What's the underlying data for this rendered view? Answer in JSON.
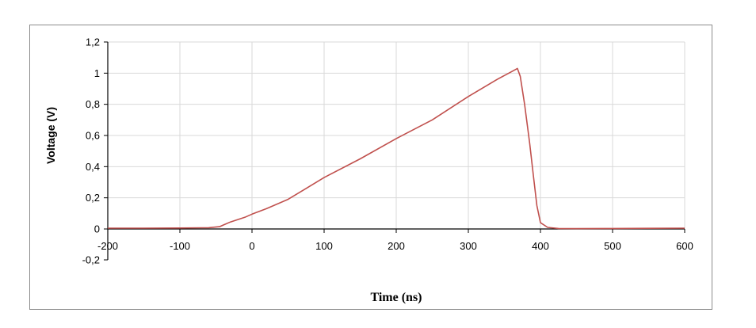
{
  "chart_data": {
    "type": "line",
    "title": "",
    "xlabel": "Time (ns)",
    "ylabel": "Voltage (V)",
    "xlim": [
      -200,
      600
    ],
    "ylim": [
      -0.2,
      1.2
    ],
    "x_ticks": [
      -200,
      -100,
      0,
      100,
      200,
      300,
      400,
      500,
      600
    ],
    "x_tick_labels": [
      "-200",
      "-100",
      "0",
      "100",
      "200",
      "300",
      "400",
      "500",
      "600"
    ],
    "y_ticks": [
      -0.2,
      0,
      0.2,
      0.4,
      0.6,
      0.8,
      1,
      1.2
    ],
    "y_tick_labels": [
      "-0,2",
      "0",
      "0,2",
      "0,4",
      "0,6",
      "0,8",
      "1",
      "1,2"
    ],
    "grid": true,
    "legend": "none",
    "series": [
      {
        "color": "#c0504d",
        "points": [
          [
            -200,
            0.005
          ],
          [
            -150,
            0.005
          ],
          [
            -100,
            0.006
          ],
          [
            -60,
            0.008
          ],
          [
            -45,
            0.015
          ],
          [
            -40,
            0.025
          ],
          [
            -30,
            0.045
          ],
          [
            -20,
            0.06
          ],
          [
            -10,
            0.075
          ],
          [
            0,
            0.095
          ],
          [
            20,
            0.13
          ],
          [
            50,
            0.19
          ],
          [
            100,
            0.33
          ],
          [
            150,
            0.45
          ],
          [
            200,
            0.58
          ],
          [
            250,
            0.7
          ],
          [
            300,
            0.85
          ],
          [
            340,
            0.96
          ],
          [
            360,
            1.01
          ],
          [
            368,
            1.03
          ],
          [
            372,
            0.98
          ],
          [
            378,
            0.8
          ],
          [
            385,
            0.55
          ],
          [
            390,
            0.35
          ],
          [
            395,
            0.15
          ],
          [
            400,
            0.04
          ],
          [
            410,
            0.01
          ],
          [
            425,
            0.003
          ],
          [
            450,
            0.002
          ],
          [
            500,
            0.003
          ],
          [
            550,
            0.004
          ],
          [
            600,
            0.005
          ]
        ]
      }
    ]
  }
}
